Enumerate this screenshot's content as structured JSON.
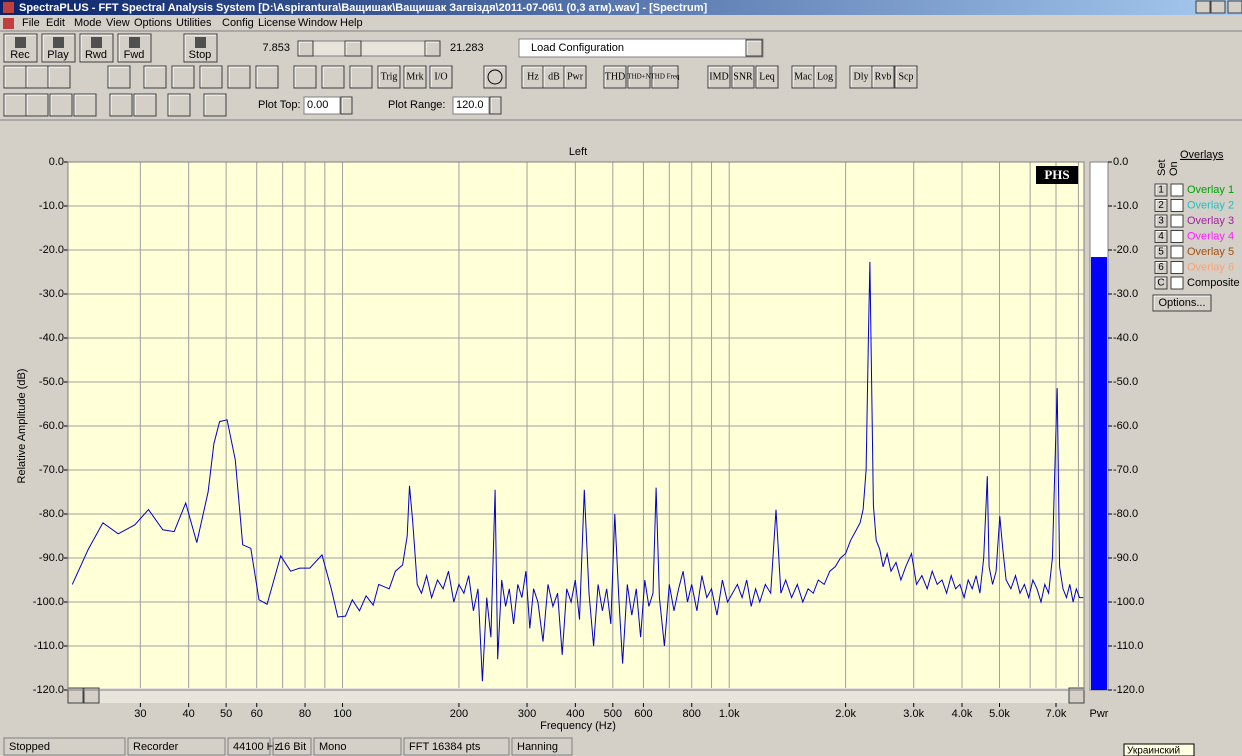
{
  "window": {
    "title": "SpectraPLUS - FFT Spectral Analysis System [D:\\Aspirantura\\Ващишак\\Ващишак Загвiздя\\2011-07-06\\1 (0,3 атм).wav] - [Spectrum]",
    "menu": [
      "File",
      "Edit",
      "Mode",
      "View",
      "Options",
      "Utilities",
      "Config",
      "License",
      "Window",
      "Help"
    ]
  },
  "toolbar": {
    "transport": [
      "Rec",
      "Play",
      "Rwd",
      "Fwd",
      "Stop"
    ],
    "position_start": "7.853",
    "position_end": "21.283",
    "configuration": "Load Configuration",
    "buttons": [
      "Trig",
      "Mrk",
      "I/O",
      "Hz",
      "dB",
      "Pwr",
      "THD",
      "THD+N",
      "THD Freq",
      "IMD",
      "SNR",
      "Leq",
      "Mac",
      "Log",
      "Dly",
      "Rvb",
      "Scp"
    ],
    "plot_top_label": "Plot Top:",
    "plot_top": "0.00",
    "plot_range_label": "Plot Range:",
    "plot_range": "120.0"
  },
  "chart_data": {
    "type": "line",
    "title": "Left",
    "logo": "PHS",
    "x_label": "Frequency (Hz)",
    "y_label": "Relative Amplitude (dB)",
    "color": "#0000cc",
    "log_x": true,
    "grid": true,
    "xlim": [
      19.5,
      8270
    ],
    "ylim": [
      -120,
      0
    ],
    "xticks": [
      30,
      40,
      50,
      60,
      80,
      100,
      200,
      300,
      400,
      500,
      600,
      800,
      {
        "value": 1000,
        "label": "1.0k"
      },
      {
        "value": 2000,
        "label": "2.0k"
      },
      {
        "value": 3000,
        "label": "3.0k"
      },
      {
        "value": 4000,
        "label": "4.0k"
      },
      {
        "value": 5000,
        "label": "5.0k"
      },
      {
        "value": 7000,
        "label": "7.0k"
      }
    ],
    "xminorticks": [
      70,
      90,
      700,
      900,
      6000,
      8000
    ],
    "yticks": [
      {
        "value": 0,
        "label": "0.0"
      },
      {
        "value": -10,
        "label": "-10.0"
      },
      {
        "value": -20,
        "label": "-20.0"
      },
      {
        "value": -30,
        "label": "-30.0"
      },
      {
        "value": -40,
        "label": "-40.0"
      },
      {
        "value": -50,
        "label": "-50.0"
      },
      {
        "value": -60,
        "label": "-60.0"
      },
      {
        "value": -70,
        "label": "-70.0"
      },
      {
        "value": -80,
        "label": "-80.0"
      },
      {
        "value": -90,
        "label": "-90.0"
      },
      {
        "value": -100,
        "label": "-100.0"
      },
      {
        "value": -110,
        "label": "-110.0"
      },
      {
        "value": -120,
        "label": "-120.0"
      }
    ],
    "x": [
      20,
      22,
      24,
      26.3,
      29,
      31.5,
      34.3,
      36.7,
      39.3,
      42,
      44.9,
      46.5,
      48.1,
      50.3,
      52.8,
      55.2,
      57.9,
      60.8,
      63.8,
      69.2,
      73.4,
      77.5,
      82.3,
      88.5,
      93.7,
      97.2,
      101.8,
      106,
      110.6,
      115.1,
      120,
      124,
      132,
      137,
      143,
      147,
      149,
      152,
      156,
      160,
      165,
      170,
      176,
      182,
      188,
      194,
      200,
      206,
      212,
      218,
      224,
      230,
      236,
      242,
      248,
      252,
      258,
      264,
      270,
      277,
      284,
      291,
      298,
      305,
      312,
      320,
      330,
      340,
      350,
      360,
      370,
      380,
      390,
      400,
      410,
      422,
      434,
      446,
      458,
      470,
      482,
      494,
      506,
      518,
      530,
      545,
      560,
      575,
      590,
      605,
      620,
      635,
      647,
      660,
      680,
      700,
      720,
      740,
      760,
      780,
      800,
      825,
      850,
      875,
      900,
      930,
      960,
      990,
      1020,
      1050,
      1080,
      1110,
      1140,
      1170,
      1200,
      1240,
      1280,
      1321,
      1360,
      1400,
      1450,
      1500,
      1550,
      1600,
      1650,
      1700,
      1760,
      1820,
      1880,
      1940,
      2000,
      2060,
      2120,
      2180,
      2220,
      2260,
      2290,
      2311,
      2330,
      2360,
      2400,
      2450,
      2500,
      2560,
      2620,
      2700,
      2780,
      2860,
      2960,
      3050,
      3150,
      3250,
      3350,
      3450,
      3550,
      3650,
      3750,
      3850,
      3950,
      4050,
      4150,
      4250,
      4350,
      4450,
      4550,
      4650,
      4700,
      4800,
      4900,
      5010,
      5100,
      5200,
      5350,
      5500,
      5650,
      5800,
      5950,
      6100,
      6250,
      6400,
      6550,
      6700,
      6850,
      6950,
      7050,
      7150,
      7300,
      7450,
      7600,
      7750,
      7900,
      8050,
      8230
    ],
    "values": [
      -96,
      -88,
      -82,
      -84.5,
      -82.5,
      -79,
      -83.6,
      -84,
      -77.5,
      -86.5,
      -75,
      -64,
      -59,
      -58.6,
      -67.7,
      -87,
      -87.8,
      -99.5,
      -100.5,
      -89.5,
      -93,
      -92.3,
      -92.3,
      -89.3,
      -97.3,
      -103.4,
      -103.2,
      -99.5,
      -102,
      -98.6,
      -100.7,
      -96,
      -97,
      -93,
      -91.6,
      -85,
      -73.6,
      -82,
      -96,
      -98,
      -94,
      -99,
      -95,
      -97,
      -93,
      -100,
      -96,
      -98,
      -94,
      -102,
      -97,
      -118,
      -99,
      -108,
      -74.5,
      -113,
      -95,
      -101,
      -97,
      -105,
      -96,
      -99,
      -93,
      -106,
      -97,
      -100,
      -109,
      -96,
      -101,
      -98,
      -112,
      -97,
      -100,
      -95,
      -104,
      -74.5,
      -98,
      -110,
      -96,
      -102,
      -97,
      -105,
      -80,
      -99,
      -114,
      -96,
      -103,
      -97,
      -108,
      -95,
      -101,
      -98,
      -74,
      -99,
      -110,
      -96,
      -102,
      -97,
      -93,
      -100,
      -96,
      -102,
      -94,
      -99,
      -97,
      -103,
      -95,
      -100,
      -98,
      -96,
      -99,
      -95,
      -101,
      -97,
      -100,
      -96,
      -98,
      -79,
      -98,
      -95,
      -99,
      -96,
      -100,
      -97,
      -98,
      -95,
      -96,
      -93,
      -92,
      -90,
      -89,
      -86,
      -84,
      -82,
      -79,
      -70,
      -40,
      -22.7,
      -45,
      -78,
      -86,
      -88,
      -92,
      -89,
      -93,
      -91,
      -95,
      -92,
      -89,
      -96,
      -94,
      -97,
      -93,
      -96,
      -95,
      -98,
      -94,
      -97,
      -96,
      -99,
      -95,
      -97,
      -94,
      -98,
      -90,
      -71.4,
      -92,
      -96,
      -93,
      -80.5,
      -88,
      -95,
      -97,
      -94,
      -98,
      -96,
      -99,
      -95,
      -97,
      -100,
      -96,
      -98,
      -90,
      -70,
      -51.4,
      -92,
      -97,
      -99,
      -96,
      -100,
      -97,
      -99,
      -99
    ],
    "meter": {
      "label": "Pwr",
      "value": -21.6,
      "color": "#0000ff"
    }
  },
  "overlays": {
    "title": "Overlays",
    "set_label": "Set",
    "on_label": "On",
    "items": [
      {
        "key": "1",
        "name": "Overlay 1",
        "color": "#00a000"
      },
      {
        "key": "2",
        "name": "Overlay 2",
        "color": "#20c0c0"
      },
      {
        "key": "3",
        "name": "Overlay 3",
        "color": "#a020a0"
      },
      {
        "key": "4",
        "name": "Overlay 4",
        "color": "#ff20ff"
      },
      {
        "key": "5",
        "name": "Overlay 5",
        "color": "#a05010"
      },
      {
        "key": "6",
        "name": "Overlay 6",
        "color": "#ffa070"
      },
      {
        "key": "C",
        "name": "Composite",
        "color": "#000000"
      }
    ],
    "options": "Options..."
  },
  "status": [
    "Stopped",
    "Recorder",
    "44100 Hz",
    "16 Bit",
    "Mono",
    "FFT 16384 pts",
    "Hanning"
  ],
  "tooltip": "Украинский"
}
